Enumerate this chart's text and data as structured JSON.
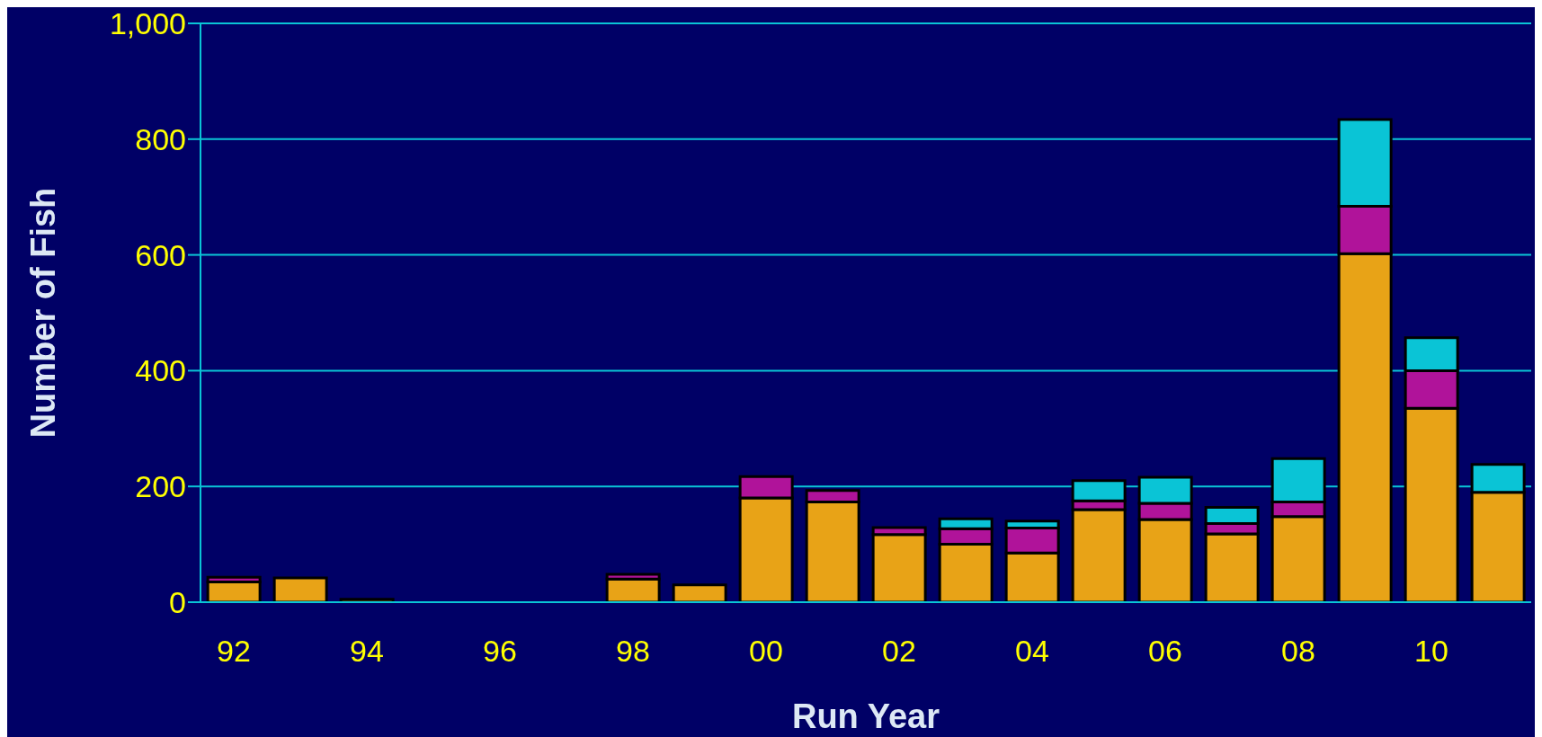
{
  "chart_data": {
    "type": "bar",
    "stacked": true,
    "xlabel": "Run Year",
    "ylabel": "Number of Fish",
    "categories": [
      "92",
      null,
      "94",
      null,
      "96",
      null,
      "98",
      null,
      "00",
      null,
      "02",
      null,
      "04",
      null,
      "06",
      null,
      "08",
      null,
      "10",
      null
    ],
    "series": [
      {
        "color": "#e8a317",
        "values": [
          35,
          42,
          5,
          null,
          null,
          null,
          40,
          30,
          180,
          173,
          117,
          100,
          85,
          160,
          143,
          118,
          148,
          602,
          335,
          190
        ]
      },
      {
        "color": "#b0139a",
        "values": [
          8,
          null,
          null,
          null,
          null,
          null,
          8,
          null,
          37,
          20,
          12,
          27,
          43,
          15,
          28,
          18,
          25,
          82,
          65,
          null
        ]
      },
      {
        "color": "#0ac4d6",
        "values": [
          null,
          null,
          null,
          null,
          null,
          null,
          null,
          null,
          null,
          null,
          null,
          17,
          12,
          35,
          45,
          28,
          75,
          150,
          57,
          48
        ]
      }
    ],
    "ylim": [
      0,
      1000
    ],
    "yticks": [
      0,
      200,
      400,
      600,
      800,
      {
        "value": 1000,
        "label": "1,000"
      }
    ],
    "grid": "y"
  }
}
